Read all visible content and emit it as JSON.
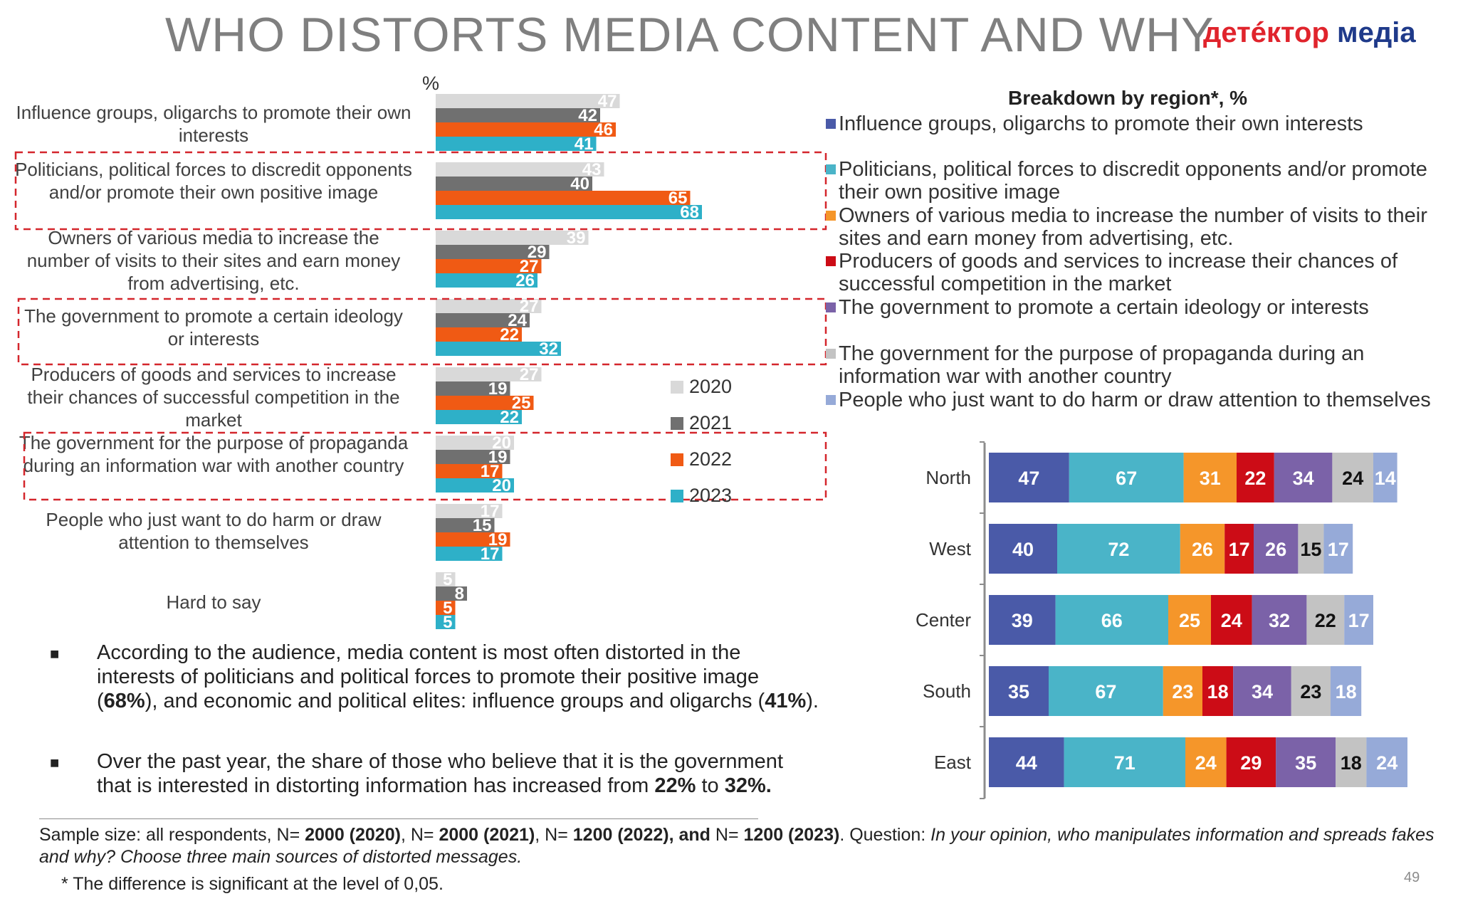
{
  "title": "WHO DISTORTS MEDIA CONTENT AND WHY",
  "logo": {
    "part1": "детéктор",
    "part2": " медіа"
  },
  "left_chart": {
    "unit_label": "%",
    "series_colors": {
      "2020": "#d9d9d9",
      "2021": "#707070",
      "2022": "#f05a14",
      "2023": "#2eb0c8"
    },
    "legend": [
      "2020",
      "2021",
      "2022",
      "2023"
    ]
  },
  "right_chart": {
    "title": "Breakdown by region*, %",
    "legend": [
      "Influence groups, oligarchs to promote their own interests",
      "Politicians, political forces to discredit opponents and/or promote their own positive image",
      "Owners of various media to increase the number of visits to their sites and earn money from advertising, etc.",
      "Producers of goods and services to increase their chances of successful competition in the market",
      "The government to promote a certain ideology or interests",
      "The government for the purpose of propaganda during an information war with another country",
      "People who just want to do harm or draw attention to themselves"
    ],
    "colors": [
      "#4a5aa8",
      "#4ab4c8",
      "#f5962a",
      "#cc0c16",
      "#7b62a8",
      "#c3c3c3",
      "#96aad8"
    ]
  },
  "chart_data": [
    {
      "type": "bar",
      "orientation": "horizontal",
      "ylabel": "%",
      "categories": [
        "Influence groups, oligarchs to promote their own interests",
        "Politicians, political forces to discredit opponents and/or promote their own positive image",
        "Owners of various media to increase the number of visits to their sites and earn money from advertising, etc.",
        "The government to promote a certain ideology or interests",
        "Producers of goods and services to increase their chances of successful competition in the market",
        "The government for the purpose of propaganda during an information war with another country",
        "People who just want to do harm or draw attention to themselves",
        "Hard to say"
      ],
      "series": [
        {
          "name": "2020",
          "values": [
            47,
            43,
            39,
            27,
            27,
            20,
            17,
            5
          ]
        },
        {
          "name": "2021",
          "values": [
            42,
            40,
            29,
            24,
            19,
            19,
            15,
            8
          ]
        },
        {
          "name": "2022",
          "values": [
            46,
            65,
            27,
            22,
            25,
            17,
            19,
            5
          ]
        },
        {
          "name": "2023",
          "values": [
            41,
            68,
            26,
            32,
            22,
            20,
            17,
            5
          ]
        }
      ],
      "highlighted_categories": [
        1,
        3,
        5
      ]
    },
    {
      "type": "bar",
      "orientation": "horizontal",
      "stacked": true,
      "title": "Breakdown by region*, %",
      "categories": [
        "North",
        "West",
        "Center",
        "South",
        "East"
      ],
      "series": [
        {
          "name": "Influence groups, oligarchs to promote their own interests",
          "values": [
            47,
            40,
            39,
            35,
            44
          ]
        },
        {
          "name": "Politicians, political forces to discredit opponents and/or promote their own positive image",
          "values": [
            67,
            72,
            66,
            67,
            71
          ]
        },
        {
          "name": "Owners of various media to increase the number of visits to their sites and earn money from advertising, etc.",
          "values": [
            31,
            26,
            25,
            23,
            24
          ]
        },
        {
          "name": "Producers of goods and services to increase their chances of successful competition in the market",
          "values": [
            22,
            17,
            24,
            18,
            29
          ]
        },
        {
          "name": "The government to promote a certain ideology or interests",
          "values": [
            34,
            26,
            32,
            34,
            35
          ]
        },
        {
          "name": "The government for the purpose of propaganda during an information war with another country",
          "values": [
            24,
            15,
            22,
            23,
            18
          ]
        },
        {
          "name": "People who just want to do harm or draw attention to themselves",
          "values": [
            14,
            17,
            17,
            18,
            24
          ]
        }
      ]
    }
  ],
  "bullets": [
    {
      "parts": [
        {
          "t": "According to the audience, media content is most often distorted in the interests of politicians and political forces to promote their positive image (",
          "b": false
        },
        {
          "t": "68%",
          "b": true
        },
        {
          "t": "), and economic and political elites: influence groups and oligarchs (",
          "b": false
        },
        {
          "t": "41%",
          "b": true
        },
        {
          "t": ").",
          "b": false
        }
      ]
    },
    {
      "parts": [
        {
          "t": "Over the past year, the share of those who believe that it is the government that is interested in distorting information has increased from ",
          "b": false
        },
        {
          "t": "22%",
          "b": true
        },
        {
          "t": " to ",
          "b": false
        },
        {
          "t": "32%.",
          "b": true
        }
      ]
    }
  ],
  "footer": {
    "parts": [
      {
        "t": "Sample size: all respondents, N= ",
        "s": "n"
      },
      {
        "t": "2000 (2020)",
        "s": "b"
      },
      {
        "t": ", N= ",
        "s": "n"
      },
      {
        "t": "2000 (2021)",
        "s": "b"
      },
      {
        "t": ", N= ",
        "s": "n"
      },
      {
        "t": "1200 (2022), and",
        "s": "b"
      },
      {
        "t": " N= ",
        "s": "n"
      },
      {
        "t": "1200 (2023)",
        "s": "b"
      },
      {
        "t": ". Question: ",
        "s": "n"
      },
      {
        "t": "In your opinion, who manipulates information and spreads fakes and why? Choose three main sources of distorted messages.",
        "s": "i"
      }
    ]
  },
  "footnote": "* The difference is significant at the level of 0,05.",
  "page_number": "49"
}
